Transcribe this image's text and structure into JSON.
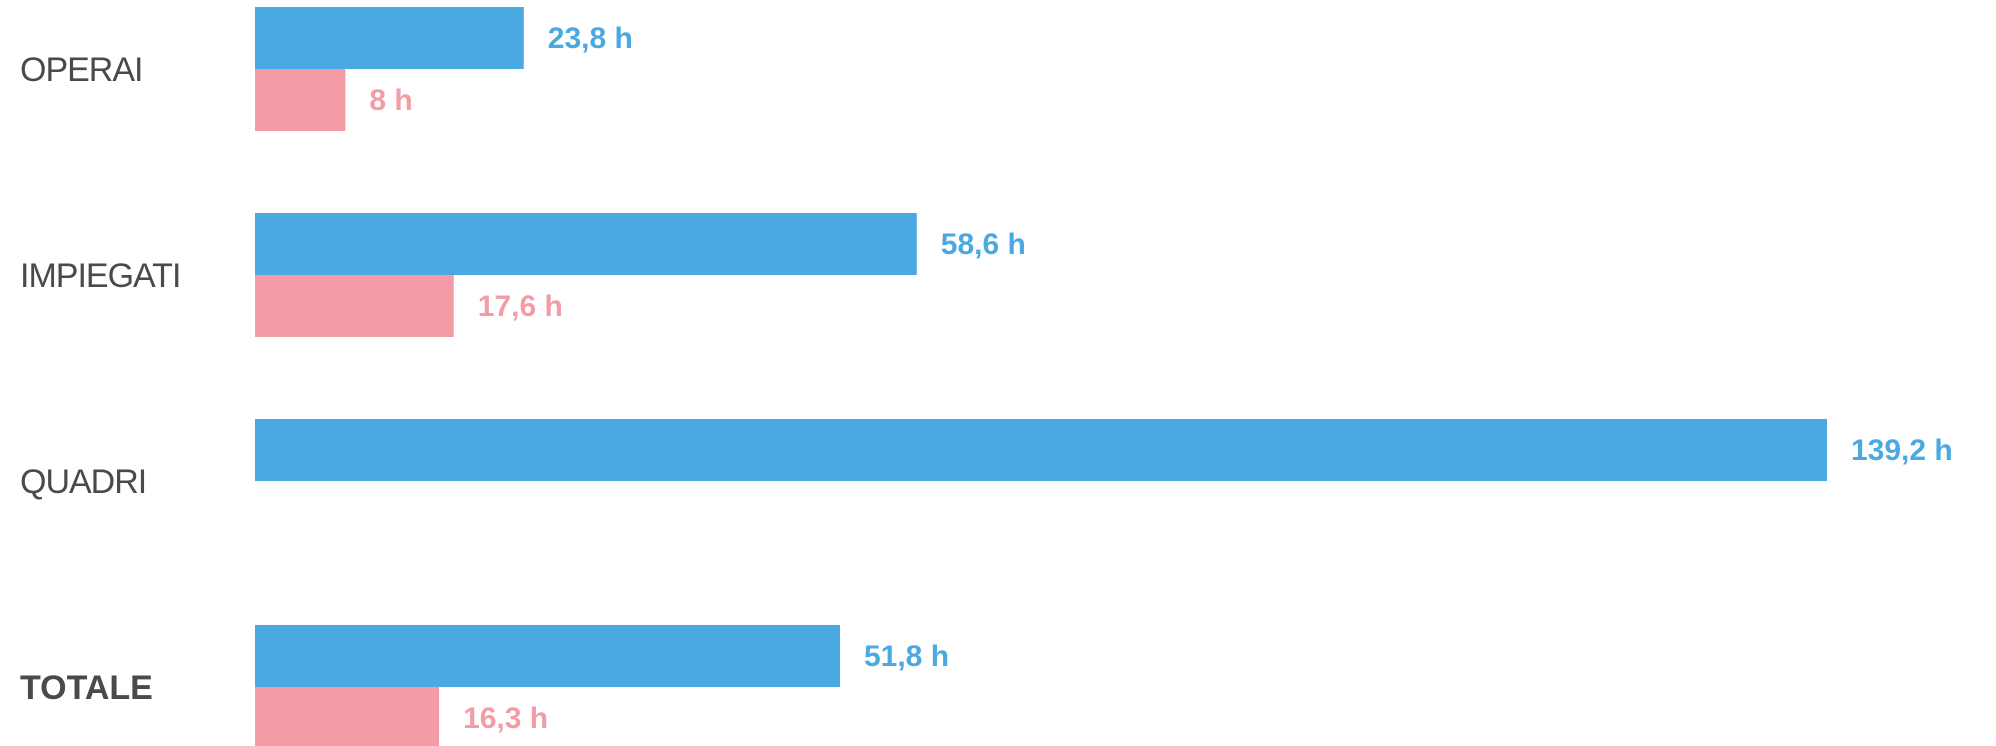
{
  "chart_data": {
    "type": "bar",
    "orientation": "horizontal",
    "categories": [
      "OPERAI",
      "IMPIEGATI",
      "QUADRI",
      "TOTALE"
    ],
    "emphasized_category": "TOTALE",
    "series": [
      {
        "color": "#4AA9E0",
        "values": [
          23.8,
          58.6,
          139.2,
          51.8
        ],
        "labels": [
          "23,8 h",
          "58,6 h",
          "139,2 h",
          "51,8 h"
        ]
      },
      {
        "color": "#F39CA5",
        "values": [
          8,
          17.6,
          null,
          16.3
        ],
        "labels": [
          "8 h",
          "17,6 h",
          "",
          "16,3 h"
        ]
      }
    ],
    "xlim": [
      0,
      139.2
    ],
    "grid": false,
    "axes_visible": false
  }
}
